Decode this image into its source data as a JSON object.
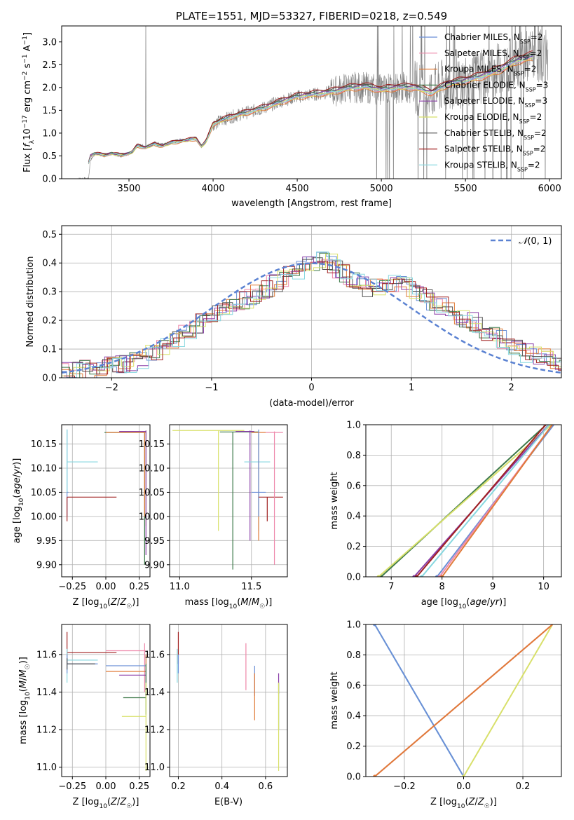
{
  "chart_data": [
    {
      "id": "spectrum",
      "type": "line",
      "title": "PLATE=1551, MJD=53327, FIBERID=0218, z=0.549",
      "xlabel": "wavelength [Angstrom, rest frame]",
      "ylabel": "Flux [fλ10⁻¹⁷ erg cm⁻² s⁻¹ A⁻¹]",
      "xlim": [
        3100,
        6070
      ],
      "ylim": [
        0,
        3.35
      ],
      "xticks": [
        3500,
        4000,
        4500,
        5000,
        5500,
        6000
      ],
      "yticks": [
        0.0,
        0.5,
        1.0,
        1.5,
        2.0,
        2.5,
        3.0
      ],
      "grid": false,
      "legend_position": "right",
      "observed": {
        "name": "data",
        "color": "#808080",
        "x": [
          3190,
          3260,
          3270,
          3300,
          3350,
          3400,
          3450,
          3500,
          3520,
          3550,
          3600,
          3650,
          3700,
          3750,
          3800,
          3850,
          3900,
          3930,
          3960,
          4000,
          4100,
          4200,
          4300,
          4400,
          4500,
          4600,
          4700,
          4800,
          4900,
          5000,
          5100,
          5200,
          5300,
          5400,
          5500,
          5600,
          5700,
          5800,
          5900
        ],
        "y": [
          0,
          0,
          0.4,
          0.55,
          0.5,
          0.55,
          0.5,
          0.55,
          0.6,
          0.75,
          0.7,
          0.8,
          0.75,
          0.8,
          0.85,
          0.85,
          0.9,
          0.7,
          0.85,
          1.2,
          1.35,
          1.45,
          1.55,
          1.7,
          1.8,
          1.85,
          1.9,
          2.0,
          2.0,
          1.95,
          2.0,
          2.0,
          1.9,
          2.1,
          2.15,
          2.25,
          2.4,
          2.6,
          2.7
        ]
      },
      "model_shape": {
        "x": [
          3260,
          3270,
          3300,
          3350,
          3400,
          3450,
          3500,
          3520,
          3550,
          3600,
          3650,
          3700,
          3750,
          3800,
          3850,
          3900,
          3930,
          3960,
          4000,
          4100,
          4200,
          4300,
          4400,
          4500,
          4600,
          4700,
          4800,
          4900,
          5000,
          5100,
          5200,
          5300,
          5400,
          5500,
          5600,
          5700,
          5800,
          5900
        ],
        "y": [
          0.35,
          0.5,
          0.55,
          0.52,
          0.55,
          0.52,
          0.55,
          0.58,
          0.72,
          0.68,
          0.75,
          0.72,
          0.78,
          0.82,
          0.84,
          0.88,
          0.7,
          0.82,
          1.2,
          1.35,
          1.45,
          1.55,
          1.68,
          1.8,
          1.85,
          1.9,
          1.98,
          2.02,
          1.95,
          2.0,
          2.0,
          1.88,
          2.08,
          2.15,
          2.25,
          2.38,
          2.58,
          2.68
        ]
      },
      "series": [
        {
          "name": "Chabrier MILES, N_SSP=2",
          "label_main": "Chabrier MILES, N",
          "label_sub": "SSP",
          "label_end": "=2",
          "color": "#6b8fd6",
          "scale": 1.0
        },
        {
          "name": "Salpeter MILES, N_SSP=2",
          "label_main": "Salpeter MILES, N",
          "label_sub": "SSP",
          "label_end": "=2",
          "color": "#ee88aa",
          "scale": 0.985
        },
        {
          "name": "Kroupa MILES, N_SSP=2",
          "label_main": "Kroupa MILES, N",
          "label_sub": "SSP",
          "label_end": "=2",
          "color": "#e07b39",
          "scale": 0.97
        },
        {
          "name": "Chabrier ELODIE, N_SSP=3",
          "label_main": "Chabrier ELODIE, N",
          "label_sub": "SSP",
          "label_end": "=3",
          "color": "#3e7a4a",
          "scale": 1.02
        },
        {
          "name": "Salpeter ELODIE, N_SSP=3",
          "label_main": "Salpeter ELODIE, N",
          "label_sub": "SSP",
          "label_end": "=3",
          "color": "#8b3fa8",
          "scale": 1.01
        },
        {
          "name": "Kroupa ELODIE, N_SSP=2",
          "label_main": "Kroupa ELODIE, N",
          "label_sub": "SSP",
          "label_end": "=2",
          "color": "#d8e06a",
          "scale": 0.99
        },
        {
          "name": "Chabrier STELIB, N_SSP=2",
          "label_main": "Chabrier STELIB, N",
          "label_sub": "SSP",
          "label_end": "=2",
          "color": "#555555",
          "scale": 1.03
        },
        {
          "name": "Salpeter STELIB, N_SSP=2",
          "label_main": "Salpeter STELIB, N",
          "label_sub": "SSP",
          "label_end": "=2",
          "color": "#a02020",
          "scale": 1.04
        },
        {
          "name": "Kroupa STELIB, N_SSP=2",
          "label_main": "Kroupa STELIB, N",
          "label_sub": "SSP",
          "label_end": "=2",
          "color": "#88d8e0",
          "scale": 0.995
        }
      ]
    },
    {
      "id": "residuals",
      "type": "line",
      "xlabel": "(data-model)/error",
      "ylabel": "Normed distribution",
      "xlim": [
        -2.5,
        2.5
      ],
      "ylim": [
        0,
        0.53
      ],
      "xticks": [
        -2,
        -1,
        0,
        1,
        2
      ],
      "yticks": [
        0.0,
        0.1,
        0.2,
        0.3,
        0.4,
        0.5
      ],
      "grid": true,
      "legend_position": "top-right",
      "gaussian": {
        "name": "N(0,1)",
        "color": "#5b82d2",
        "mu": 0,
        "sigma": 1
      },
      "hist_shape": {
        "x": [
          -2.5,
          -2.2,
          -2.0,
          -1.8,
          -1.6,
          -1.4,
          -1.2,
          -1.0,
          -0.8,
          -0.6,
          -0.4,
          -0.2,
          0.0,
          0.2,
          0.4,
          0.6,
          0.8,
          1.0,
          1.2,
          1.4,
          1.6,
          1.8,
          2.0,
          2.2,
          2.5
        ],
        "y": [
          0.02,
          0.03,
          0.04,
          0.05,
          0.08,
          0.12,
          0.17,
          0.22,
          0.26,
          0.28,
          0.32,
          0.36,
          0.41,
          0.4,
          0.34,
          0.31,
          0.33,
          0.31,
          0.27,
          0.23,
          0.2,
          0.15,
          0.11,
          0.08,
          0.05
        ]
      }
    },
    {
      "id": "age_vs_Z",
      "type": "scatter",
      "xlabel": "Z [log10(Z/Z☉)]",
      "ylabel": "age [log10(age/yr)]",
      "xlim": [
        -0.33,
        0.33
      ],
      "ylim": [
        9.875,
        10.19
      ],
      "xticks": [
        -0.25,
        0.0,
        0.25
      ],
      "xtick_labels": [
        "−0.25",
        "0.00",
        "0.25"
      ],
      "yticks": [
        9.9,
        9.95,
        10.0,
        10.05,
        10.1,
        10.15
      ],
      "grid": true,
      "bars": [
        {
          "color": "#6b8fd6",
          "x": -0.29,
          "y": 10.05,
          "x_range": [
            -0.29,
            -0.28
          ],
          "y_range": [
            10.0,
            10.18
          ]
        },
        {
          "color": "#88d8e0",
          "x": -0.29,
          "y": 10.113,
          "x_range": [
            -0.29,
            -0.06
          ],
          "y_range": [
            10.05,
            10.18
          ]
        },
        {
          "color": "#a02020",
          "x": -0.29,
          "y": 10.04,
          "x_range": [
            -0.29,
            0.08
          ],
          "y_range": [
            9.99,
            10.04
          ]
        },
        {
          "color": "#3e7a4a",
          "x": 0.29,
          "y": 10.174,
          "x_range": [
            -0.01,
            0.29
          ],
          "y_range": [
            9.9,
            10.175
          ]
        },
        {
          "color": "#e07b39",
          "x": 0.29,
          "y": 10.174,
          "x_range": [
            0.0,
            0.3
          ],
          "y_range": [
            10.0,
            10.175
          ]
        },
        {
          "color": "#d8e06a",
          "x": 0.3,
          "y": 10.176,
          "x_range": [
            0.12,
            0.3
          ],
          "y_range": [
            9.98,
            10.178
          ]
        },
        {
          "color": "#8b3fa8",
          "x": 0.3,
          "y": 10.176,
          "x_range": [
            0.1,
            0.3
          ],
          "y_range": [
            9.92,
            10.178
          ]
        }
      ]
    },
    {
      "id": "age_vs_mass",
      "type": "scatter",
      "xlabel": "mass [log10(M/M☉)]",
      "ylabel": "",
      "xlim": [
        10.93,
        11.75
      ],
      "ylim": [
        9.875,
        10.19
      ],
      "xticks": [
        11.0,
        11.5
      ],
      "yticks": [
        9.9,
        9.95,
        10.0,
        10.05,
        10.1,
        10.15
      ],
      "grid": true,
      "bars": [
        {
          "color": "#d8e06a",
          "x": 11.27,
          "y": 10.178,
          "x_range": [
            10.95,
            11.45
          ],
          "y_range": [
            9.97,
            10.178
          ]
        },
        {
          "color": "#3e7a4a",
          "x": 11.37,
          "y": 10.175,
          "x_range": [
            11.28,
            11.55
          ],
          "y_range": [
            9.89,
            10.175
          ]
        },
        {
          "color": "#8b3fa8",
          "x": 11.49,
          "y": 10.176,
          "x_range": [
            11.39,
            11.52
          ],
          "y_range": [
            9.95,
            10.178
          ]
        },
        {
          "color": "#88d8e0",
          "x": 11.55,
          "y": 10.113,
          "x_range": [
            11.45,
            11.63
          ],
          "y_range": [
            9.97,
            10.17
          ]
        },
        {
          "color": "#e07b39",
          "x": 11.55,
          "y": 10.174,
          "x_range": [
            11.5,
            11.6
          ],
          "y_range": [
            9.95,
            10.175
          ]
        },
        {
          "color": "#6b8fd6",
          "x": 11.55,
          "y": 10.05,
          "x_range": [
            11.5,
            11.6
          ],
          "y_range": [
            10.0,
            10.18
          ]
        },
        {
          "color": "#a02020",
          "x": 11.61,
          "y": 10.04,
          "x_range": [
            11.55,
            11.72
          ],
          "y_range": [
            9.99,
            10.04
          ]
        },
        {
          "color": "#ee88aa",
          "x": 11.66,
          "y": 10.174,
          "x_range": [
            11.6,
            11.72
          ],
          "y_range": [
            9.9,
            10.176
          ]
        }
      ]
    },
    {
      "id": "weight_vs_age",
      "type": "line",
      "xlabel": "age [log10(age/yr)]",
      "ylabel": "mass weight",
      "xlim": [
        6.5,
        10.35
      ],
      "ylim": [
        0,
        1.0
      ],
      "xticks": [
        7,
        8,
        9,
        10
      ],
      "yticks": [
        0.0,
        0.2,
        0.4,
        0.6,
        0.8,
        1.0
      ],
      "grid": true,
      "series": [
        {
          "color": "#3e7a4a",
          "x": [
            6.8,
            10.05
          ],
          "y": [
            0,
            1
          ]
        },
        {
          "color": "#d8e06a",
          "x": [
            6.75,
            10.15
          ],
          "y": [
            0,
            1
          ]
        },
        {
          "color": "#8b3fa8",
          "x": [
            7.45,
            10.1
          ],
          "y": [
            0,
            1
          ]
        },
        {
          "color": "#a02020",
          "x": [
            7.5,
            10.04
          ],
          "y": [
            0,
            1
          ]
        },
        {
          "color": "#88d8e0",
          "x": [
            7.6,
            10.11
          ],
          "y": [
            0,
            1
          ]
        },
        {
          "color": "#6b8fd6",
          "x": [
            7.9,
            10.2
          ],
          "y": [
            0,
            1
          ]
        },
        {
          "color": "#ee88aa",
          "x": [
            7.95,
            10.17
          ],
          "y": [
            0,
            1
          ]
        },
        {
          "color": "#e07b39",
          "x": [
            8.0,
            10.17
          ],
          "y": [
            0,
            1
          ]
        }
      ]
    },
    {
      "id": "mass_vs_Z",
      "type": "scatter",
      "xlabel": "Z [log10(Z/Z☉)]",
      "ylabel": "mass [log10(M/M☉)]",
      "xlim": [
        -0.33,
        0.33
      ],
      "ylim": [
        10.95,
        11.76
      ],
      "xticks": [
        -0.25,
        0.0,
        0.25
      ],
      "xtick_labels": [
        "−0.25",
        "0.00",
        "0.25"
      ],
      "yticks": [
        11.0,
        11.2,
        11.4,
        11.6
      ],
      "grid": true,
      "bars": [
        {
          "color": "#a02020",
          "x": -0.29,
          "y": 11.61,
          "x_range": [
            -0.29,
            0.08
          ],
          "y_range": [
            11.55,
            11.72
          ]
        },
        {
          "color": "#88d8e0",
          "x": -0.29,
          "y": 11.57,
          "x_range": [
            -0.29,
            -0.06
          ],
          "y_range": [
            11.45,
            11.63
          ]
        },
        {
          "color": "#6b8fd6",
          "x": -0.29,
          "y": 11.55,
          "x_range": [
            -0.29,
            -0.06
          ],
          "y_range": [
            11.5,
            11.6
          ]
        },
        {
          "color": "#555555",
          "x": -0.29,
          "y": 11.55,
          "x_range": [
            -0.29,
            -0.08
          ],
          "y_range": [
            11.52,
            11.58
          ]
        },
        {
          "color": "#ee88aa",
          "x": 0.29,
          "y": 11.62,
          "x_range": [
            0.0,
            0.3
          ],
          "y_range": [
            11.4,
            11.66
          ]
        },
        {
          "color": "#6b8fd6",
          "x": 0.3,
          "y": 11.54,
          "x_range": [
            0.0,
            0.3
          ],
          "y_range": [
            11.5,
            11.6
          ]
        },
        {
          "color": "#e07b39",
          "x": 0.3,
          "y": 11.51,
          "x_range": [
            0.0,
            0.3
          ],
          "y_range": [
            11.4,
            11.6
          ]
        },
        {
          "color": "#8b3fa8",
          "x": 0.3,
          "y": 11.49,
          "x_range": [
            0.1,
            0.3
          ],
          "y_range": [
            11.39,
            11.52
          ]
        },
        {
          "color": "#3e7a4a",
          "x": 0.3,
          "y": 11.37,
          "x_range": [
            0.13,
            0.3
          ],
          "y_range": [
            11.28,
            11.55
          ]
        },
        {
          "color": "#d8e06a",
          "x": 0.3,
          "y": 11.27,
          "x_range": [
            0.12,
            0.3
          ],
          "y_range": [
            10.98,
            11.45
          ]
        }
      ]
    },
    {
      "id": "mass_vs_ebv",
      "type": "scatter",
      "xlabel": "E(B-V)",
      "ylabel": "",
      "xlim": [
        0.16,
        0.7
      ],
      "ylim": [
        10.95,
        11.76
      ],
      "xticks": [
        0.2,
        0.4,
        0.6
      ],
      "yticks": [
        11.0,
        11.2,
        11.4,
        11.6
      ],
      "grid": true,
      "bars": [
        {
          "color": "#a02020",
          "x": 0.2,
          "y": 11.61,
          "y_range": [
            11.55,
            11.72
          ]
        },
        {
          "color": "#88d8e0",
          "x": 0.195,
          "y": 11.57,
          "y_range": [
            11.45,
            11.63
          ]
        },
        {
          "color": "#6b8fd6",
          "x": 0.2,
          "y": 11.55,
          "y_range": [
            11.5,
            11.6
          ]
        },
        {
          "color": "#ee88aa",
          "x": 0.51,
          "y": 11.56,
          "y_range": [
            11.41,
            11.66
          ]
        },
        {
          "color": "#6b8fd6",
          "x": 0.55,
          "y": 11.46,
          "y_range": [
            11.38,
            11.54
          ]
        },
        {
          "color": "#e07b39",
          "x": 0.55,
          "y": 11.4,
          "y_range": [
            11.25,
            11.5
          ]
        },
        {
          "color": "#8b3fa8",
          "x": 0.66,
          "y": 11.45,
          "y_range": [
            11.39,
            11.5
          ]
        },
        {
          "color": "#3e7a4a",
          "x": 0.66,
          "y": 11.37,
          "y_range": [
            11.2,
            11.45
          ]
        },
        {
          "color": "#d8e06a",
          "x": 0.66,
          "y": 11.2,
          "y_range": [
            10.98,
            11.45
          ]
        }
      ]
    },
    {
      "id": "weight_vs_Z",
      "type": "line",
      "xlabel": "Z [log10(Z/Z☉)]",
      "ylabel": "mass weight",
      "xlim": [
        -0.33,
        0.33
      ],
      "ylim": [
        0,
        1.0
      ],
      "xticks": [
        -0.2,
        0.0,
        0.2
      ],
      "xtick_labels": [
        "−0.2",
        "0.0",
        "0.2"
      ],
      "yticks": [
        0.0,
        0.2,
        0.4,
        0.6,
        0.8,
        1.0
      ],
      "grid": true,
      "series": [
        {
          "color": "#88d8e0",
          "x": [
            -0.3,
            0.0
          ],
          "y": [
            1,
            0
          ]
        },
        {
          "color": "#6b8fd6",
          "x": [
            -0.3,
            0.0
          ],
          "y": [
            1,
            0
          ]
        },
        {
          "color": "#d8e06a",
          "x": [
            0.0,
            0.3
          ],
          "y": [
            0,
            1
          ]
        },
        {
          "color": "#ee88aa",
          "x": [
            -0.3,
            0.3
          ],
          "y": [
            0,
            1
          ]
        },
        {
          "color": "#e07b39",
          "x": [
            -0.3,
            0.3
          ],
          "y": [
            0,
            1
          ]
        }
      ]
    }
  ]
}
